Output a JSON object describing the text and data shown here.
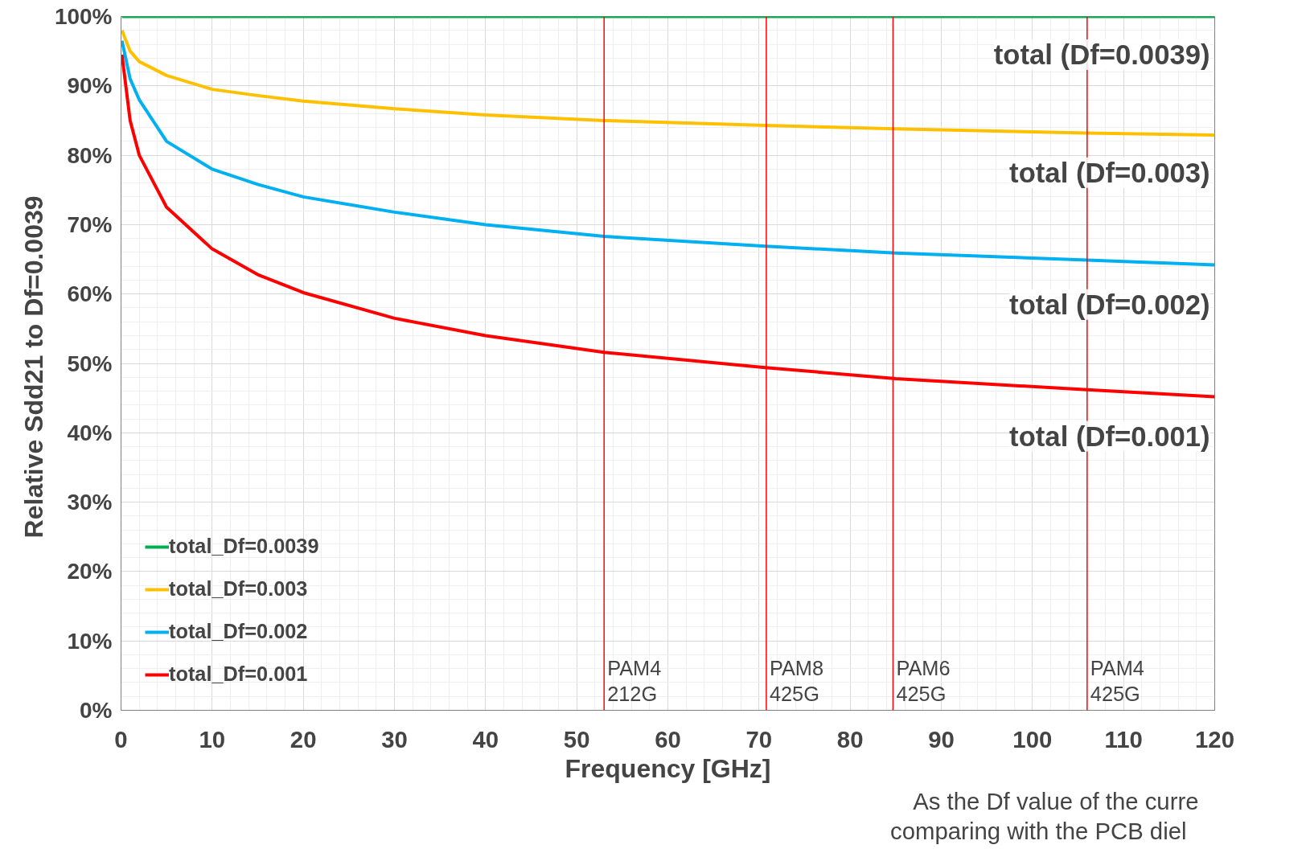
{
  "chart_data": {
    "type": "line",
    "xlabel": "Frequency [GHz]",
    "ylabel": "Relative  Sdd21 to Df=0.0039",
    "xlim": [
      0,
      120
    ],
    "ylim": [
      0,
      100
    ],
    "xticks": [
      0,
      10,
      20,
      30,
      40,
      50,
      60,
      70,
      80,
      90,
      100,
      110,
      120
    ],
    "yticks": [
      {
        "value": 0,
        "label": "0%"
      },
      {
        "value": 10,
        "label": "10%"
      },
      {
        "value": 20,
        "label": "20%"
      },
      {
        "value": 30,
        "label": "30%"
      },
      {
        "value": 40,
        "label": "40%"
      },
      {
        "value": 50,
        "label": "50%"
      },
      {
        "value": 60,
        "label": "60%"
      },
      {
        "value": 70,
        "label": "70%"
      },
      {
        "value": 80,
        "label": "80%"
      },
      {
        "value": 90,
        "label": "90%"
      },
      {
        "value": 100,
        "label": "100%"
      }
    ],
    "grid": true,
    "legend": "bottom left",
    "marker": "none",
    "line_style": "solid",
    "x": [
      0.1,
      1,
      2,
      5,
      10,
      15,
      20,
      30,
      40,
      53,
      70.7,
      85,
      106,
      120
    ],
    "series": [
      {
        "name": "total_Df=0.0039",
        "color": "#00b050",
        "values": [
          100,
          100,
          100,
          100,
          100,
          100,
          100,
          100,
          100,
          100,
          100,
          100,
          100,
          100
        ]
      },
      {
        "name": "total_Df=0.003",
        "color": "#ffc000",
        "values": [
          98,
          95,
          93.5,
          91.5,
          89.5,
          88.6,
          87.8,
          86.7,
          85.8,
          85,
          84.3,
          83.8,
          83.2,
          82.9
        ]
      },
      {
        "name": "total_Df=0.002",
        "color": "#00b0f0",
        "values": [
          96.5,
          91,
          88,
          82,
          78,
          75.8,
          74,
          71.8,
          70,
          68.3,
          66.9,
          65.9,
          64.9,
          64.2
        ]
      },
      {
        "name": "total_Df=0.001",
        "color": "#ff0000",
        "values": [
          94.5,
          85,
          80,
          72.5,
          66.5,
          62.8,
          60.2,
          56.5,
          54,
          51.6,
          49.4,
          47.8,
          46.2,
          45.2
        ]
      }
    ],
    "ref_lines": [
      {
        "axis": "x",
        "value": 53,
        "label": "PAM4\n212G",
        "color": "#ff0000"
      },
      {
        "axis": "x",
        "value": 70.8,
        "label": "PAM8\n425G",
        "color": "#ff0000"
      },
      {
        "axis": "x",
        "value": 84.7,
        "label": "PAM6\n425G",
        "color": "#ff0000"
      },
      {
        "axis": "x",
        "value": 106,
        "label": "PAM4\n425G",
        "color": "#ff0000"
      }
    ],
    "annotations": [
      "total (Df=0.0039)",
      "total (Df=0.003)",
      "total (Df=0.002)",
      "total (Df=0.001)",
      "As the Df value of the curre",
      "comparing with the PCB diel"
    ]
  }
}
